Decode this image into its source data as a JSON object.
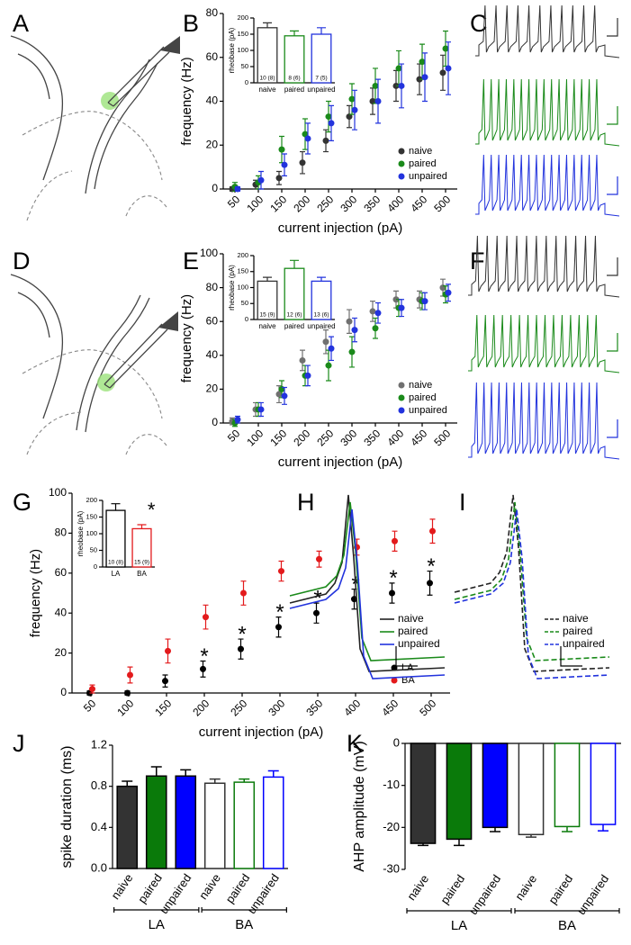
{
  "chart_data": [
    {
      "type": "illustration",
      "panel": "A"
    },
    {
      "type": "scatter",
      "panel": "B",
      "x_label": "current injection (pA)",
      "y_label": "frequency (Hz)",
      "categories": [
        "50",
        "100",
        "150",
        "200",
        "250",
        "300",
        "350",
        "400",
        "450",
        "500"
      ],
      "series": [
        {
          "name": "naive",
          "color": "#333333",
          "values": [
            0,
            2,
            5,
            12,
            22,
            33,
            40,
            47,
            50,
            53
          ],
          "errors": [
            1,
            2,
            3,
            5,
            5,
            5,
            6,
            7,
            7,
            8
          ]
        },
        {
          "name": "paired",
          "color": "#1a8a1a",
          "values": [
            1,
            3,
            18,
            25,
            33,
            41,
            47,
            55,
            58,
            64
          ],
          "errors": [
            2,
            3,
            6,
            7,
            7,
            7,
            8,
            8,
            8,
            8
          ]
        },
        {
          "name": "unpaired",
          "color": "#2233dd",
          "values": [
            0,
            4,
            11,
            23,
            30,
            36,
            40,
            47,
            51,
            55
          ],
          "errors": [
            1,
            4,
            5,
            7,
            8,
            9,
            10,
            10,
            11,
            12
          ]
        }
      ],
      "ylim": [
        0,
        80
      ],
      "yticks": [
        0,
        20,
        40,
        60,
        80
      ],
      "legend": "bottom-right",
      "inset": {
        "type": "bar",
        "y_label": "rheobase (pA)",
        "categories": [
          "naive",
          "paired",
          "unpaired"
        ],
        "values": [
          170,
          145,
          150
        ],
        "errors": [
          15,
          15,
          20
        ],
        "n_labels": [
          "10 (8)",
          "8 (6)",
          "7 (5)"
        ],
        "colors": [
          "#333333",
          "#1a8a1a",
          "#2233dd"
        ],
        "filled": false,
        "ylim": [
          0,
          200
        ],
        "yticks": [
          0,
          50,
          100,
          150,
          200
        ]
      }
    },
    {
      "type": "spike-train",
      "panel": "C",
      "colors": [
        "#333333",
        "#1a8a1a",
        "#2233dd"
      ]
    },
    {
      "type": "illustration",
      "panel": "D"
    },
    {
      "type": "scatter",
      "panel": "E",
      "x_label": "current injection (pA)",
      "y_label": "frequency (Hz)",
      "categories": [
        "50",
        "100",
        "150",
        "200",
        "250",
        "300",
        "350",
        "400",
        "450",
        "500"
      ],
      "series": [
        {
          "name": "naive",
          "color": "#707070",
          "values": [
            1,
            8,
            17,
            37,
            48,
            60,
            66,
            73,
            73,
            80
          ],
          "errors": [
            2,
            4,
            5,
            6,
            7,
            7,
            6,
            5,
            5,
            5
          ]
        },
        {
          "name": "paired",
          "color": "#1a8a1a",
          "values": [
            0,
            8,
            20,
            28,
            34,
            42,
            56,
            68,
            72,
            76
          ],
          "errors": [
            2,
            4,
            5,
            6,
            9,
            9,
            6,
            5,
            5,
            5
          ]
        },
        {
          "name": "unpaired",
          "color": "#2233dd",
          "values": [
            2,
            8,
            16,
            28,
            44,
            55,
            65,
            68,
            72,
            77
          ],
          "errors": [
            2,
            4,
            5,
            6,
            7,
            7,
            6,
            5,
            5,
            5
          ]
        }
      ],
      "ylim": [
        0,
        100
      ],
      "yticks": [
        0,
        20,
        40,
        60,
        80,
        100
      ],
      "legend": "bottom-right",
      "inset": {
        "type": "bar",
        "y_label": "rheobase (pA)",
        "categories": [
          "naive",
          "paired",
          "unpaired"
        ],
        "values": [
          120,
          160,
          120
        ],
        "errors": [
          12,
          25,
          12
        ],
        "n_labels": [
          "15 (9)",
          "12 (6)",
          "13 (6)"
        ],
        "colors": [
          "#333333",
          "#1a8a1a",
          "#2233dd"
        ],
        "filled": false,
        "ylim": [
          0,
          200
        ],
        "yticks": [
          0,
          50,
          100,
          150,
          200
        ]
      }
    },
    {
      "type": "spike-train",
      "panel": "F",
      "colors": [
        "#333333",
        "#1a8a1a",
        "#2233dd"
      ]
    },
    {
      "type": "scatter",
      "panel": "G",
      "x_label": "current injection (pA)",
      "y_label": "frequency (Hz)",
      "categories": [
        "50",
        "100",
        "150",
        "200",
        "250",
        "300",
        "350",
        "400",
        "450",
        "500"
      ],
      "series": [
        {
          "name": "LA",
          "color": "#000000",
          "values": [
            0,
            0,
            6,
            12,
            22,
            33,
            40,
            47,
            50,
            55
          ],
          "errors": [
            1,
            1,
            3,
            4,
            5,
            5,
            5,
            5,
            5,
            6
          ]
        },
        {
          "name": "BA",
          "color": "#e31a1c",
          "values": [
            2,
            9,
            21,
            38,
            50,
            61,
            67,
            73,
            76,
            81
          ],
          "errors": [
            2,
            4,
            6,
            6,
            6,
            5,
            4,
            4,
            5,
            6
          ]
        }
      ],
      "ylim": [
        0,
        100
      ],
      "yticks": [
        0,
        20,
        40,
        60,
        80,
        100
      ],
      "legend": "bottom-right",
      "annotations": [
        {
          "text": "*",
          "category": "200"
        },
        {
          "text": "*",
          "category": "250"
        },
        {
          "text": "*",
          "category": "300"
        },
        {
          "text": "*",
          "category": "350"
        },
        {
          "text": "*",
          "category": "400"
        },
        {
          "text": "*",
          "category": "450"
        },
        {
          "text": "*",
          "category": "500"
        }
      ],
      "inset": {
        "type": "bar",
        "y_label": "rheobase (pA)",
        "categories": [
          "LA",
          "BA"
        ],
        "values": [
          170,
          115
        ],
        "errors": [
          20,
          12
        ],
        "n_labels": [
          "10 (8)",
          "15 (9)"
        ],
        "colors": [
          "#000000",
          "#e31a1c"
        ],
        "filled": false,
        "ylim": [
          0,
          200
        ],
        "yticks": [
          0,
          50,
          100,
          150,
          200
        ],
        "annotation": "*"
      }
    },
    {
      "type": "spike-overlay",
      "panel": "H",
      "dashed": false,
      "series": [
        {
          "name": "naive",
          "color": "#222222"
        },
        {
          "name": "paired",
          "color": "#1a8a1a"
        },
        {
          "name": "unpaired",
          "color": "#2233dd"
        }
      ]
    },
    {
      "type": "spike-overlay",
      "panel": "I",
      "dashed": true,
      "series": [
        {
          "name": "naive",
          "color": "#222222"
        },
        {
          "name": "paired",
          "color": "#1a8a1a"
        },
        {
          "name": "unpaired",
          "color": "#2233dd"
        }
      ]
    },
    {
      "type": "bar",
      "panel": "J",
      "y_label": "spike duration  (ms)",
      "categories": [
        "naive",
        "paired",
        "unpaired",
        "naive",
        "paired",
        "unpaired"
      ],
      "values": [
        0.8,
        0.9,
        0.9,
        0.83,
        0.84,
        0.89
      ],
      "errors": [
        0.05,
        0.09,
        0.06,
        0.04,
        0.03,
        0.06
      ],
      "colors": [
        "#333333",
        "#0a7a0a",
        "#0000ff",
        "#333333",
        "#0a7a0a",
        "#0000ff"
      ],
      "filled": [
        true,
        true,
        true,
        false,
        false,
        false
      ],
      "groups": [
        "LA",
        "BA"
      ],
      "ylim": [
        0,
        1.2
      ],
      "yticks": [
        {
          "value": 0,
          "label": "0.0"
        },
        0.4,
        0.8,
        1.2
      ]
    },
    {
      "type": "bar",
      "panel": "K",
      "y_label": "AHP amplitude (mV)",
      "categories": [
        "naive",
        "paired",
        "unpaired",
        "naive",
        "paired",
        "unpaired"
      ],
      "values": [
        -23.8,
        -22.8,
        -20,
        -21.7,
        -19.8,
        -19.3
      ],
      "errors": [
        0.5,
        1.5,
        1,
        0.6,
        1.2,
        1.5
      ],
      "colors": [
        "#333333",
        "#0a7a0a",
        "#0000ff",
        "#333333",
        "#0a7a0a",
        "#0000ff"
      ],
      "filled": [
        true,
        true,
        true,
        false,
        false,
        false
      ],
      "groups": [
        "LA",
        "BA"
      ],
      "ylim": [
        -30,
        0
      ],
      "yticks": [
        0,
        -10,
        -20,
        -30
      ]
    }
  ]
}
